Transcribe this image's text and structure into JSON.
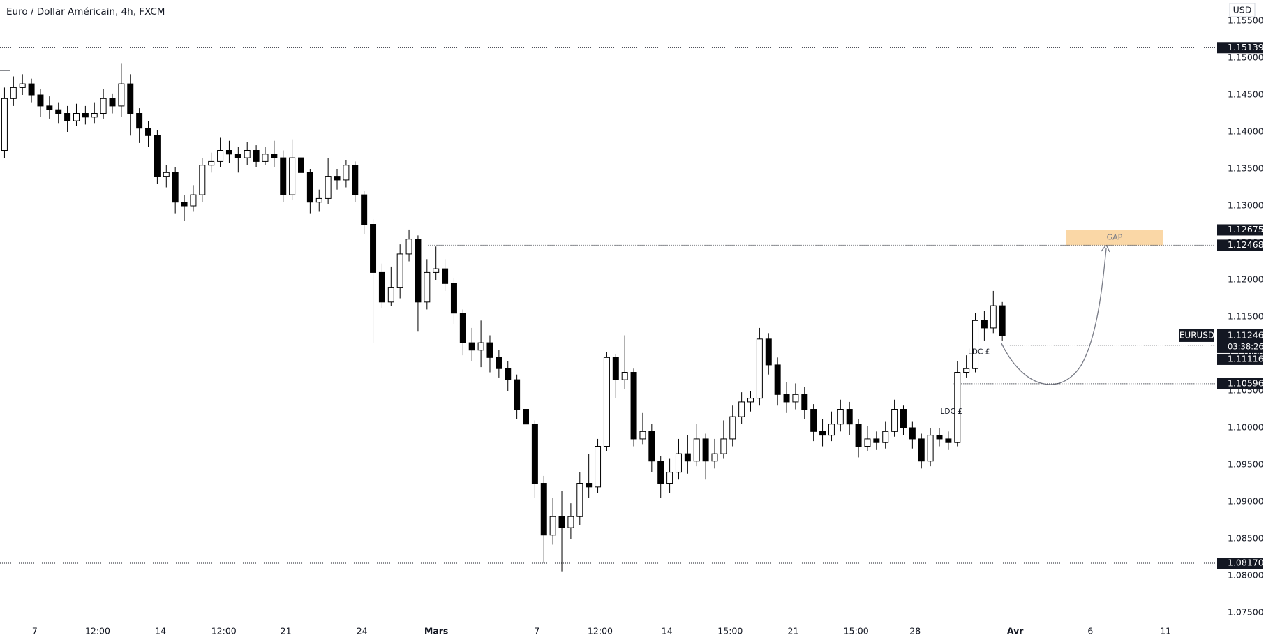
{
  "chart_data": {
    "type": "candlestick",
    "title": "Euro / Dollar Américain, 4h, FXCM",
    "currency": "USD",
    "xlim": [
      0,
      405.5
    ],
    "ylim": [
      1.07406,
      1.15783
    ],
    "grid": false,
    "up_color": "#ffffff",
    "down_color": "#000000",
    "wick_color": "#000000",
    "yticks": [
      {
        "value": 1.155,
        "label": "1.15500"
      },
      {
        "value": 1.15,
        "label": "1.15000"
      },
      {
        "value": 1.145,
        "label": "1.14500"
      },
      {
        "value": 1.14,
        "label": "1.14000"
      },
      {
        "value": 1.135,
        "label": "1.13500"
      },
      {
        "value": 1.13,
        "label": "1.13000"
      },
      {
        "value": 1.125,
        "label": "1.12500"
      },
      {
        "value": 1.12,
        "label": "1.12000"
      },
      {
        "value": 1.115,
        "label": "1.11500"
      },
      {
        "value": 1.11,
        "label": "1.11000"
      },
      {
        "value": 1.105,
        "label": "1.10500"
      },
      {
        "value": 1.1,
        "label": "1.10000"
      },
      {
        "value": 1.095,
        "label": "1.09500"
      },
      {
        "value": 1.09,
        "label": "1.09000"
      },
      {
        "value": 1.085,
        "label": "1.08500"
      },
      {
        "value": 1.08,
        "label": "1.08000"
      },
      {
        "value": 1.075,
        "label": "1.07500"
      }
    ],
    "xticks": [
      {
        "value": 11.6,
        "label": "7"
      },
      {
        "value": 32.6,
        "label": "12:00"
      },
      {
        "value": 53.6,
        "label": "14"
      },
      {
        "value": 74.7,
        "label": "12:00"
      },
      {
        "value": 95.4,
        "label": "21"
      },
      {
        "value": 120.8,
        "label": "24"
      },
      {
        "value": 145.6,
        "label": "Mars"
      },
      {
        "value": 179.2,
        "label": "7"
      },
      {
        "value": 200.3,
        "label": "12:00"
      },
      {
        "value": 222.6,
        "label": "14"
      },
      {
        "value": 243.7,
        "label": "15:00"
      },
      {
        "value": 264.7,
        "label": "21"
      },
      {
        "value": 285.7,
        "label": "15:00"
      },
      {
        "value": 305.4,
        "label": "28"
      },
      {
        "value": 338.8,
        "label": "Avr"
      },
      {
        "value": 363.9,
        "label": "6"
      },
      {
        "value": 389,
        "label": "11"
      }
    ],
    "x": [
      1.5,
      4.5,
      7.5,
      10.5,
      13.5,
      16.5,
      19.5,
      22.5,
      25.5,
      28.5,
      31.5,
      34.5,
      37.5,
      40.5,
      43.5,
      46.5,
      49.5,
      52.5,
      55.5,
      58.5,
      61.5,
      64.5,
      67.5,
      70.5,
      73.5,
      76.5,
      79.5,
      82.5,
      85.5,
      88.5,
      91.5,
      94.5,
      97.5,
      100.5,
      103.5,
      106.5,
      109.5,
      112.5,
      115.5,
      118.5,
      121.5,
      124.5,
      127.5,
      130.5,
      133.5,
      136.5,
      139.5,
      142.5,
      145.5,
      148.5,
      151.5,
      154.5,
      157.5,
      160.5,
      163.5,
      166.5,
      169.5,
      172.5,
      175.5,
      178.5,
      181.5,
      184.5,
      187.5,
      190.5,
      193.5,
      196.5,
      199.5,
      202.5,
      205.5,
      208.5,
      211.5,
      214.5,
      217.5,
      220.5,
      223.5,
      226.5,
      229.5,
      232.5,
      235.5,
      238.5,
      241.5,
      244.5,
      247.5,
      250.5,
      253.5,
      256.5,
      259.5,
      262.5,
      265.5,
      268.5,
      271.5,
      274.5,
      277.5,
      280.5,
      283.5,
      286.5,
      289.5,
      292.5,
      295.5,
      298.5,
      301.5,
      304.5,
      307.5,
      310.5,
      313.5,
      316.5,
      319.5,
      322.5,
      325.5,
      328.5,
      331.5,
      334.5
    ],
    "open": [
      1.1375,
      1.1445,
      1.146,
      1.1465,
      1.145,
      1.1435,
      1.143,
      1.1425,
      1.1415,
      1.1425,
      1.142,
      1.1425,
      1.1445,
      1.1435,
      1.1465,
      1.1425,
      1.1405,
      1.1395,
      1.134,
      1.1345,
      1.1305,
      1.13,
      1.1315,
      1.1355,
      1.136,
      1.1375,
      1.137,
      1.1365,
      1.1375,
      1.136,
      1.137,
      1.1365,
      1.1315,
      1.1365,
      1.1345,
      1.1305,
      1.131,
      1.134,
      1.1335,
      1.1355,
      1.1315,
      1.1275,
      1.121,
      1.117,
      1.119,
      1.1235,
      1.1255,
      1.117,
      1.121,
      1.1215,
      1.1195,
      1.1155,
      1.1115,
      1.1105,
      1.1115,
      1.1095,
      1.108,
      1.1065,
      1.1025,
      1.1005,
      1.0925,
      1.0855,
      1.088,
      1.0865,
      1.088,
      1.0925,
      1.092,
      1.0975,
      1.1095,
      1.1065,
      1.1075,
      1.0985,
      1.0995,
      1.0955,
      1.0925,
      1.094,
      1.0965,
      1.0955,
      1.0985,
      1.0955,
      1.0965,
      1.0985,
      1.1015,
      1.1035,
      1.104,
      1.112,
      1.1085,
      1.1045,
      1.1035,
      1.1045,
      1.1025,
      1.0995,
      1.099,
      1.1005,
      1.1025,
      1.1005,
      1.0975,
      1.0985,
      1.098,
      1.0995,
      1.1025,
      1.1,
      1.0985,
      1.0955,
      1.099,
      1.0985,
      1.098,
      1.1075,
      1.108,
      1.1145,
      1.1135,
      1.1165
    ],
    "high": [
      1.146,
      1.1475,
      1.1478,
      1.1472,
      1.1458,
      1.1448,
      1.144,
      1.1435,
      1.1438,
      1.1435,
      1.144,
      1.1458,
      1.1452,
      1.1493,
      1.1478,
      1.1432,
      1.1415,
      1.1402,
      1.1355,
      1.1352,
      1.1315,
      1.1328,
      1.1365,
      1.1372,
      1.1392,
      1.1388,
      1.138,
      1.1386,
      1.1382,
      1.138,
      1.1388,
      1.1375,
      1.139,
      1.1372,
      1.135,
      1.1322,
      1.1365,
      1.135,
      1.1362,
      1.136,
      1.132,
      1.1282,
      1.1222,
      1.1218,
      1.1248,
      1.1268,
      1.126,
      1.1228,
      1.1245,
      1.1228,
      1.1202,
      1.116,
      1.1135,
      1.1145,
      1.1125,
      1.1105,
      1.109,
      1.1072,
      1.103,
      1.101,
      1.0935,
      1.0905,
      1.0915,
      1.0898,
      1.094,
      1.0965,
      1.0985,
      1.1102,
      1.11,
      1.1125,
      1.108,
      1.102,
      1.1005,
      1.0962,
      1.0958,
      1.0985,
      1.099,
      1.1005,
      1.0992,
      1.0985,
      1.101,
      1.103,
      1.1048,
      1.105,
      1.1135,
      1.1128,
      1.1095,
      1.1062,
      1.106,
      1.1055,
      1.1032,
      1.1012,
      1.1022,
      1.1038,
      1.1035,
      1.1012,
      1.1002,
      1.0995,
      1.1008,
      1.1038,
      1.103,
      1.1008,
      1.0992,
      1.1,
      1.1,
      1.0995,
      1.109,
      1.1098,
      1.1155,
      1.1158,
      1.1185,
      1.117
    ],
    "low": [
      1.1365,
      1.1435,
      1.145,
      1.144,
      1.142,
      1.1418,
      1.1412,
      1.14,
      1.1408,
      1.141,
      1.1412,
      1.1418,
      1.1425,
      1.142,
      1.1395,
      1.1385,
      1.138,
      1.133,
      1.1325,
      1.129,
      1.128,
      1.1292,
      1.1305,
      1.1345,
      1.1352,
      1.1358,
      1.1345,
      1.1355,
      1.1352,
      1.1355,
      1.1352,
      1.1305,
      1.1308,
      1.133,
      1.129,
      1.1292,
      1.1302,
      1.1322,
      1.1325,
      1.1305,
      1.1262,
      1.1115,
      1.1162,
      1.1165,
      1.1175,
      1.1225,
      1.113,
      1.116,
      1.12,
      1.1185,
      1.114,
      1.1098,
      1.109,
      1.1082,
      1.1075,
      1.1068,
      1.105,
      1.1012,
      1.0985,
      1.0905,
      1.0817,
      1.0842,
      1.0806,
      1.085,
      1.0868,
      1.0905,
      1.0912,
      1.0968,
      1.104,
      1.1052,
      1.0975,
      1.0978,
      1.094,
      1.0905,
      1.0912,
      1.093,
      1.0938,
      1.0948,
      1.093,
      1.0945,
      1.0958,
      1.0975,
      1.1005,
      1.1022,
      1.103,
      1.1072,
      1.103,
      1.102,
      1.1025,
      1.1012,
      1.0982,
      1.0975,
      1.0982,
      1.0995,
      1.099,
      1.096,
      1.0968,
      1.097,
      1.0972,
      1.0988,
      1.099,
      1.0972,
      1.0945,
      1.0948,
      1.0975,
      1.097,
      1.0975,
      1.1068,
      1.1075,
      1.1118,
      1.1128,
      1.1118
    ],
    "close": [
      1.1445,
      1.146,
      1.1465,
      1.145,
      1.1435,
      1.143,
      1.1425,
      1.1415,
      1.1425,
      1.142,
      1.1425,
      1.1445,
      1.1435,
      1.1465,
      1.1425,
      1.1405,
      1.1395,
      1.134,
      1.1345,
      1.1305,
      1.13,
      1.1315,
      1.1355,
      1.136,
      1.1375,
      1.137,
      1.1365,
      1.1375,
      1.136,
      1.137,
      1.1365,
      1.1315,
      1.1365,
      1.1345,
      1.1305,
      1.131,
      1.134,
      1.1335,
      1.1355,
      1.1315,
      1.1275,
      1.121,
      1.117,
      1.119,
      1.1235,
      1.1255,
      1.117,
      1.121,
      1.1215,
      1.1195,
      1.1155,
      1.1115,
      1.1105,
      1.1115,
      1.1095,
      1.108,
      1.1065,
      1.1025,
      1.1005,
      1.0925,
      1.0855,
      1.088,
      1.0865,
      1.088,
      1.0925,
      1.092,
      1.0975,
      1.1095,
      1.1065,
      1.1075,
      1.0985,
      1.0995,
      1.0955,
      1.0925,
      1.094,
      1.0965,
      1.0955,
      1.0985,
      1.0955,
      1.0965,
      1.0985,
      1.1015,
      1.1035,
      1.104,
      1.112,
      1.1085,
      1.1045,
      1.1035,
      1.1045,
      1.1025,
      1.0995,
      1.099,
      1.1005,
      1.1025,
      1.1005,
      1.0975,
      1.0985,
      1.098,
      1.0995,
      1.1025,
      1.1,
      1.0985,
      1.0955,
      1.099,
      1.0985,
      1.098,
      1.1075,
      1.108,
      1.1145,
      1.1135,
      1.1165,
      1.1125
    ],
    "levels": [
      {
        "value": 1.15139,
        "label": "1.15139",
        "from_x": 0
      },
      {
        "value": 1.12675,
        "label": "1.12675",
        "from_x": 136.1
      },
      {
        "value": 1.12468,
        "label": "1.12468",
        "from_x": 142.9
      },
      {
        "value": 1.11116,
        "label": "1.11116",
        "from_x": 334.2
      },
      {
        "value": 1.10596,
        "label": "1.10596",
        "from_x": 318
      },
      {
        "value": 1.0817,
        "label": "1.08170",
        "from_x": 0
      }
    ],
    "current": {
      "symbol": "EURUSD",
      "value": 1.11246,
      "label": "1.11246",
      "countdown": "03:38:26"
    },
    "gap": {
      "label": "GAP",
      "color": "#fad7a6",
      "x": [
        355.8,
        388.1
      ],
      "y": [
        1.12468,
        1.12675
      ]
    },
    "annotations": [
      {
        "text": "LDC £",
        "x": 317.5,
        "y": 1.10216
      },
      {
        "text": "LDC £",
        "x": 326.7,
        "y": 1.11024
      }
    ]
  }
}
